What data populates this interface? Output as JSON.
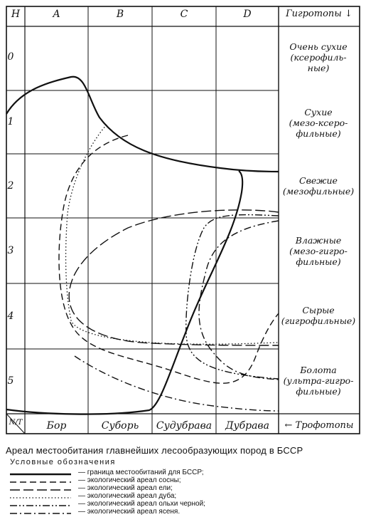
{
  "columns": [
    "A",
    "B",
    "C",
    "D"
  ],
  "corner_top": "Н",
  "corner_bottom": "N/T",
  "hygrotopes_header": "Гигротопы",
  "hygrotopes_arrow": "↓",
  "rows": [
    {
      "index": "0",
      "hygrotope": "Очень сухие\n(ксерофиль-\nные)"
    },
    {
      "index": "1",
      "hygrotope": "Сухие\n(мезо-ксеро-\nфильные)"
    },
    {
      "index": "2",
      "hygrotope": "Свежие\n(мезофильные)"
    },
    {
      "index": "3",
      "hygrotope": "Влажные\n(мезо-гигро-\nфильные)"
    },
    {
      "index": "4",
      "hygrotope": "Сырые\n(гигрофильные)"
    },
    {
      "index": "5",
      "hygrotope": "Болота\n(ультра-гигро-\nфильные)"
    }
  ],
  "trophotopes": [
    "Бор",
    "Суборь",
    "Судубрава",
    "Дубрава"
  ],
  "trophotopes_label": "← Трофотопы",
  "caption": "Ареал местообитания главнейших лесообразующих пород в БССР",
  "legend_title": "Условные обозначения",
  "legend": [
    {
      "style": "solid",
      "label": "— граница местообитаний для БССР;"
    },
    {
      "style": "dash",
      "label": "— экологический ареал сосны;"
    },
    {
      "style": "longdash",
      "label": "— экологический ареал ели;"
    },
    {
      "style": "dot",
      "label": "— экологический ареал дуба;"
    },
    {
      "style": "dashdotdot",
      "label": "— экологический ареал ольхи черной;"
    },
    {
      "style": "dashdot",
      "label": "— экологический ареал ясеня."
    }
  ]
}
